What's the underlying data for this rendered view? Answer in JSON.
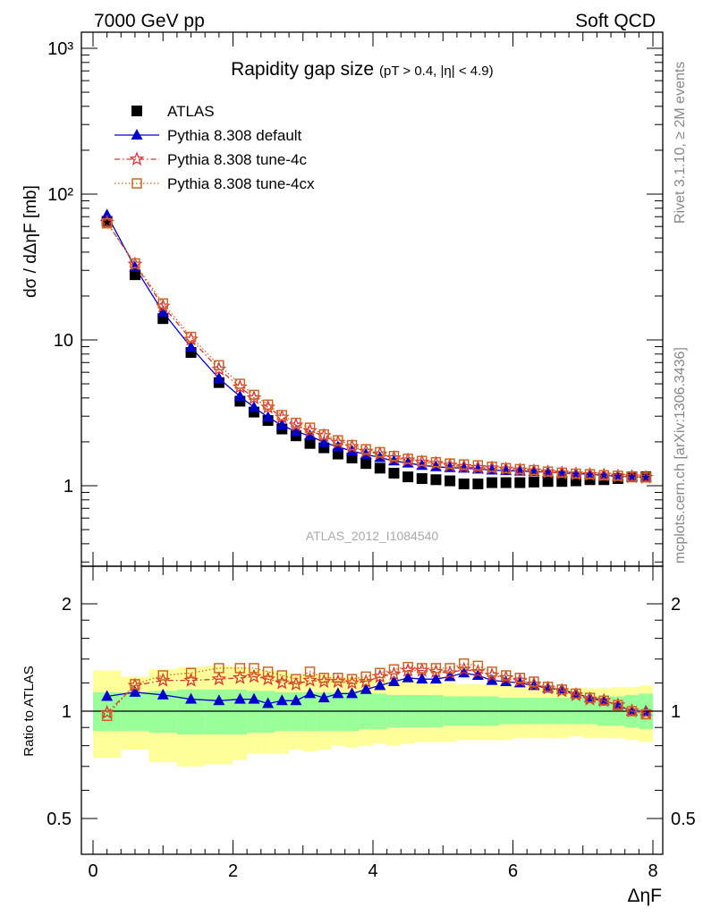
{
  "header": {
    "left": "7000 GeV pp",
    "right": "Soft QCD"
  },
  "side": {
    "rivet": "Rivet 3.1.10, ≥ 2M events",
    "mcplots": "mcplots.cern.ch [arXiv:1306.3436]"
  },
  "chart_data": {
    "type": "scatter",
    "title": "Rapidity gap size",
    "subtitle": "(pT > 0.4, |η| < 4.9)",
    "ylabel": "dσ / dΔηF [mb]",
    "xlabel": "ΔηF",
    "ratio_ylabel": "Ratio to ATLAS",
    "analysis": "ATLAS_2012_I1084540",
    "log_y": true,
    "xlim": [
      -0.25,
      8.2
    ],
    "ylim": [
      0.3,
      1200
    ],
    "ratio_ylim": [
      0.42,
      2.4
    ],
    "x_ticks": [
      "0",
      "2",
      "4",
      "6",
      "8"
    ],
    "y_ticks": [
      "1",
      "10",
      "10²",
      "10³"
    ],
    "ratio_ticks": [
      "0.5",
      "1",
      "2"
    ],
    "legend_position": "top-left",
    "x": [
      0.2,
      0.6,
      1.0,
      1.4,
      1.8,
      2.1,
      2.3,
      2.5,
      2.7,
      2.9,
      3.1,
      3.3,
      3.5,
      3.7,
      3.9,
      4.1,
      4.3,
      4.5,
      4.7,
      4.9,
      5.1,
      5.3,
      5.5,
      5.7,
      5.9,
      6.1,
      6.3,
      6.5,
      6.7,
      6.9,
      7.1,
      7.3,
      7.5,
      7.7,
      7.9
    ],
    "series": [
      {
        "name": "ATLAS",
        "color": "#000000",
        "marker": "square",
        "values": [
          65,
          28,
          14,
          8.2,
          5.1,
          3.8,
          3.2,
          2.8,
          2.45,
          2.2,
          1.95,
          1.82,
          1.65,
          1.55,
          1.42,
          1.32,
          1.22,
          1.15,
          1.12,
          1.1,
          1.08,
          1.03,
          1.03,
          1.05,
          1.05,
          1.05,
          1.06,
          1.07,
          1.07,
          1.08,
          1.1,
          1.1,
          1.12,
          1.15,
          1.15
        ]
      },
      {
        "name": "Pythia 8.308 default",
        "color": "#0000cc",
        "marker": "triangle",
        "values": [
          72,
          31.5,
          15.5,
          8.9,
          5.45,
          4.1,
          3.45,
          2.95,
          2.6,
          2.35,
          2.2,
          1.98,
          1.85,
          1.73,
          1.64,
          1.56,
          1.48,
          1.43,
          1.38,
          1.35,
          1.33,
          1.32,
          1.3,
          1.28,
          1.27,
          1.26,
          1.25,
          1.24,
          1.23,
          1.21,
          1.2,
          1.18,
          1.16,
          1.15,
          1.14
        ]
      },
      {
        "name": "Pythia 8.308 tune-4c",
        "color": "#dd3333",
        "marker": "star",
        "values": [
          64,
          33,
          17,
          10.1,
          6.3,
          4.75,
          4.0,
          3.45,
          2.95,
          2.6,
          2.38,
          2.2,
          1.98,
          1.85,
          1.72,
          1.65,
          1.55,
          1.5,
          1.45,
          1.42,
          1.38,
          1.35,
          1.33,
          1.32,
          1.3,
          1.28,
          1.26,
          1.24,
          1.22,
          1.2,
          1.19,
          1.18,
          1.16,
          1.15,
          1.14
        ]
      },
      {
        "name": "Pythia 8.308 tune-4cx",
        "color": "#cc6622",
        "marker": "opensquare",
        "values": [
          63,
          33.5,
          17.8,
          10.5,
          6.7,
          5.0,
          4.2,
          3.6,
          3.05,
          2.7,
          2.5,
          2.25,
          2.05,
          1.9,
          1.78,
          1.7,
          1.6,
          1.53,
          1.48,
          1.45,
          1.42,
          1.4,
          1.38,
          1.35,
          1.32,
          1.3,
          1.28,
          1.25,
          1.23,
          1.21,
          1.2,
          1.18,
          1.17,
          1.15,
          1.14
        ]
      }
    ],
    "ratios": [
      {
        "name": "Pythia 8.308 default",
        "values": [
          1.1,
          1.13,
          1.11,
          1.08,
          1.07,
          1.08,
          1.08,
          1.05,
          1.07,
          1.07,
          1.12,
          1.09,
          1.12,
          1.12,
          1.15,
          1.18,
          1.21,
          1.24,
          1.23,
          1.23,
          1.25,
          1.28,
          1.26,
          1.22,
          1.21,
          1.2,
          1.18,
          1.16,
          1.15,
          1.12,
          1.09,
          1.07,
          1.04,
          1.0,
          1.0
        ]
      },
      {
        "name": "Pythia 8.308 tune-4c",
        "values": [
          0.99,
          1.18,
          1.22,
          1.22,
          1.23,
          1.24,
          1.25,
          1.23,
          1.2,
          1.19,
          1.22,
          1.21,
          1.21,
          1.2,
          1.21,
          1.25,
          1.27,
          1.3,
          1.3,
          1.29,
          1.28,
          1.31,
          1.29,
          1.26,
          1.24,
          1.22,
          1.19,
          1.16,
          1.14,
          1.11,
          1.08,
          1.07,
          1.04,
          1.0,
          0.99
        ]
      },
      {
        "name": "Pythia 8.308 tune-4cx",
        "values": [
          0.97,
          1.19,
          1.26,
          1.28,
          1.32,
          1.32,
          1.32,
          1.29,
          1.26,
          1.23,
          1.29,
          1.24,
          1.24,
          1.23,
          1.25,
          1.28,
          1.31,
          1.33,
          1.32,
          1.32,
          1.32,
          1.36,
          1.34,
          1.29,
          1.26,
          1.24,
          1.21,
          1.17,
          1.15,
          1.12,
          1.09,
          1.07,
          1.04,
          1.0,
          0.98
        ]
      }
    ],
    "bands": {
      "inner_color": "#99ff99",
      "outer_color": "#ffff99",
      "edges": [
        0,
        0.4,
        0.8,
        1.2,
        1.6,
        2.0,
        2.2,
        2.4,
        2.6,
        2.8,
        3.0,
        3.2,
        3.4,
        3.6,
        3.8,
        4.0,
        4.2,
        4.4,
        4.6,
        4.8,
        5.0,
        5.2,
        5.4,
        5.6,
        5.8,
        6.0,
        6.2,
        6.4,
        6.6,
        6.8,
        7.0,
        7.2,
        7.4,
        7.6,
        7.8,
        8.0
      ],
      "inner_lo": [
        0.88,
        0.88,
        0.87,
        0.86,
        0.86,
        0.86,
        0.87,
        0.87,
        0.88,
        0.88,
        0.88,
        0.88,
        0.88,
        0.88,
        0.89,
        0.89,
        0.9,
        0.9,
        0.9,
        0.9,
        0.91,
        0.91,
        0.91,
        0.91,
        0.92,
        0.92,
        0.92,
        0.92,
        0.92,
        0.92,
        0.92,
        0.91,
        0.91,
        0.9,
        0.89
      ],
      "inner_hi": [
        1.13,
        1.13,
        1.14,
        1.15,
        1.15,
        1.15,
        1.14,
        1.14,
        1.13,
        1.13,
        1.13,
        1.13,
        1.13,
        1.13,
        1.12,
        1.12,
        1.11,
        1.11,
        1.11,
        1.11,
        1.1,
        1.1,
        1.1,
        1.1,
        1.09,
        1.09,
        1.09,
        1.09,
        1.09,
        1.09,
        1.09,
        1.1,
        1.1,
        1.11,
        1.12
      ],
      "outer_lo": [
        0.74,
        0.78,
        0.72,
        0.7,
        0.71,
        0.73,
        0.76,
        0.76,
        0.76,
        0.78,
        0.77,
        0.78,
        0.8,
        0.79,
        0.8,
        0.81,
        0.8,
        0.81,
        0.82,
        0.82,
        0.82,
        0.83,
        0.83,
        0.83,
        0.83,
        0.84,
        0.84,
        0.84,
        0.84,
        0.85,
        0.84,
        0.84,
        0.84,
        0.83,
        0.82
      ],
      "outer_hi": [
        1.3,
        1.25,
        1.31,
        1.33,
        1.34,
        1.33,
        1.31,
        1.3,
        1.29,
        1.27,
        1.27,
        1.27,
        1.25,
        1.25,
        1.24,
        1.23,
        1.22,
        1.22,
        1.21,
        1.2,
        1.2,
        1.19,
        1.19,
        1.19,
        1.18,
        1.18,
        1.18,
        1.17,
        1.17,
        1.16,
        1.16,
        1.16,
        1.17,
        1.17,
        1.18
      ]
    }
  }
}
